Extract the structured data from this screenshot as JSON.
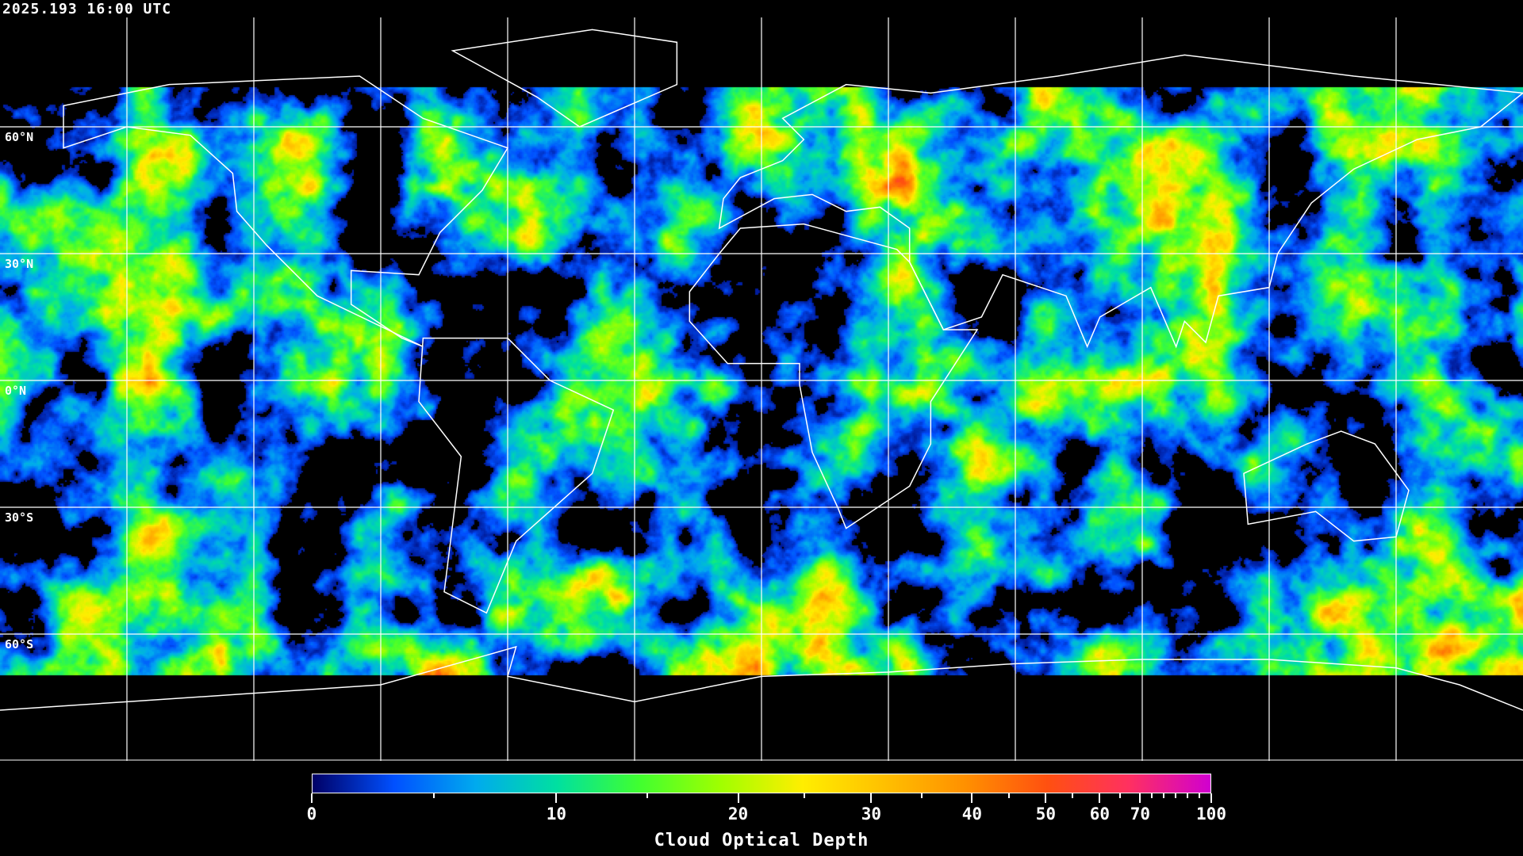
{
  "header": {
    "timestamp": "2025.193 16:00 UTC"
  },
  "map": {
    "projection": "equirectangular",
    "lon_range": [
      -180,
      180
    ],
    "lat_range": [
      -90,
      90
    ],
    "grid_spacing_deg": 30,
    "grid_color": "#ffffff",
    "coastline_color": "#ffffff",
    "no_data_color": "#000000",
    "lat_labels": [
      "60°N",
      "30°N",
      "0°N",
      "30°S",
      "60°S"
    ]
  },
  "colorbar": {
    "title": "Cloud Optical Depth",
    "range": [
      0,
      100
    ],
    "major_ticks": [
      "0",
      "10",
      "20",
      "30",
      "40",
      "50",
      "60",
      "70",
      "100"
    ],
    "minor_ticks": [
      5,
      15,
      25,
      35,
      45,
      55,
      65,
      75,
      80,
      85,
      90,
      95
    ],
    "colors": [
      "#000066",
      "#0050ff",
      "#00aaee",
      "#00e0a0",
      "#40ff30",
      "#a0ff00",
      "#ffee00",
      "#ffc000",
      "#ff9000",
      "#ff5010",
      "#ff3060",
      "#d000d0"
    ]
  }
}
